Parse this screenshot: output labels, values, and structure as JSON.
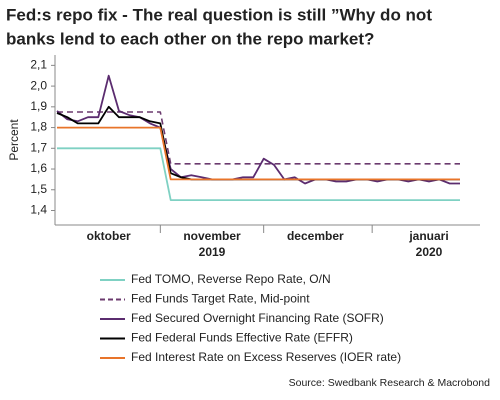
{
  "chart_data": {
    "type": "line",
    "title": [
      "Fed:s repo fix - The real question is still ”Why do not",
      "banks lend to each other on the repo market?"
    ],
    "y_label": "Percent",
    "source": "Source: Swedbank Research & Macrobond",
    "categories": [
      null,
      null,
      null,
      null,
      null,
      "oktober",
      null,
      null,
      null,
      null,
      null,
      null,
      null,
      null,
      null,
      "november",
      null,
      null,
      null,
      null,
      null,
      null,
      null,
      null,
      null,
      "december",
      null,
      null,
      null,
      null,
      null,
      null,
      null,
      null,
      null,
      null,
      "januari",
      null,
      null,
      null
    ],
    "years": [
      null,
      null,
      null,
      null,
      null,
      null,
      null,
      null,
      null,
      null,
      null,
      null,
      null,
      null,
      null,
      "2019",
      null,
      null,
      null,
      null,
      null,
      null,
      null,
      null,
      null,
      null,
      null,
      null,
      null,
      null,
      null,
      null,
      null,
      null,
      null,
      null,
      "2020",
      null,
      null,
      null
    ],
    "ylim": [
      1.33,
      2.15
    ],
    "yticks": [
      {
        "value": 2.1,
        "label": "2,1"
      },
      {
        "value": 2.0,
        "label": "2,0"
      },
      {
        "value": 1.9,
        "label": "1,9"
      },
      {
        "value": 1.8,
        "label": "1,8"
      },
      {
        "value": 1.7,
        "label": "1,7"
      },
      {
        "value": 1.6,
        "label": "1,6"
      },
      {
        "value": 1.5,
        "label": "1,5"
      },
      {
        "value": 1.4,
        "label": "1,4"
      }
    ],
    "series": [
      {
        "name": "Fed TOMO, Reverse Repo Rate, O/N",
        "color": "#7fd1c3",
        "dash": false,
        "values": [
          1.7,
          1.7,
          1.7,
          1.7,
          1.7,
          1.7,
          1.7,
          1.7,
          1.7,
          1.7,
          1.7,
          1.45,
          1.45,
          1.45,
          1.45,
          1.45,
          1.45,
          1.45,
          1.45,
          1.45,
          1.45,
          1.45,
          1.45,
          1.45,
          1.45,
          1.45,
          1.45,
          1.45,
          1.45,
          1.45,
          1.45,
          1.45,
          1.45,
          1.45,
          1.45,
          1.45,
          1.45,
          1.45,
          1.45,
          1.45
        ]
      },
      {
        "name": "Fed Funds Target Rate, Mid-point",
        "color": "#6b3a6e",
        "dash": true,
        "values": [
          1.875,
          1.875,
          1.875,
          1.875,
          1.875,
          1.875,
          1.875,
          1.875,
          1.875,
          1.875,
          1.875,
          1.625,
          1.625,
          1.625,
          1.625,
          1.625,
          1.625,
          1.625,
          1.625,
          1.625,
          1.625,
          1.625,
          1.625,
          1.625,
          1.625,
          1.625,
          1.625,
          1.625,
          1.625,
          1.625,
          1.625,
          1.625,
          1.625,
          1.625,
          1.625,
          1.625,
          1.625,
          1.625,
          1.625,
          1.625
        ]
      },
      {
        "name": "Fed Secured Overnight Financing Rate (SOFR)",
        "color": "#5b2c6f",
        "dash": false,
        "values": [
          1.88,
          1.84,
          1.83,
          1.85,
          1.85,
          2.05,
          1.88,
          1.86,
          1.85,
          1.82,
          1.8,
          1.6,
          1.56,
          1.57,
          1.56,
          1.55,
          1.55,
          1.55,
          1.56,
          1.56,
          1.65,
          1.62,
          1.55,
          1.56,
          1.53,
          1.55,
          1.55,
          1.54,
          1.54,
          1.55,
          1.55,
          1.54,
          1.55,
          1.55,
          1.54,
          1.55,
          1.54,
          1.55,
          1.53,
          1.53
        ]
      },
      {
        "name": "Fed Federal Funds Effective Rate (EFFR)",
        "color": "#000000",
        "dash": false,
        "values": [
          1.87,
          1.85,
          1.82,
          1.82,
          1.82,
          1.9,
          1.85,
          1.85,
          1.85,
          1.83,
          1.82,
          1.58,
          1.56,
          1.55,
          1.55,
          1.55,
          1.55,
          1.55,
          1.55,
          1.55,
          1.55,
          1.55,
          1.55,
          1.55,
          1.55,
          1.55,
          1.55,
          1.55,
          1.55,
          1.55,
          1.55,
          1.55,
          1.55,
          1.55,
          1.55,
          1.55,
          1.55,
          1.55,
          1.55,
          1.55
        ]
      },
      {
        "name": "Fed Interest Rate on Excess Reserves (IOER rate)",
        "color": "#e8742a",
        "dash": false,
        "values": [
          1.8,
          1.8,
          1.8,
          1.8,
          1.8,
          1.8,
          1.8,
          1.8,
          1.8,
          1.8,
          1.8,
          1.55,
          1.55,
          1.55,
          1.55,
          1.55,
          1.55,
          1.55,
          1.55,
          1.55,
          1.55,
          1.55,
          1.55,
          1.55,
          1.55,
          1.55,
          1.55,
          1.55,
          1.55,
          1.55,
          1.55,
          1.55,
          1.55,
          1.55,
          1.55,
          1.55,
          1.55,
          1.55,
          1.55,
          1.55
        ]
      }
    ]
  }
}
